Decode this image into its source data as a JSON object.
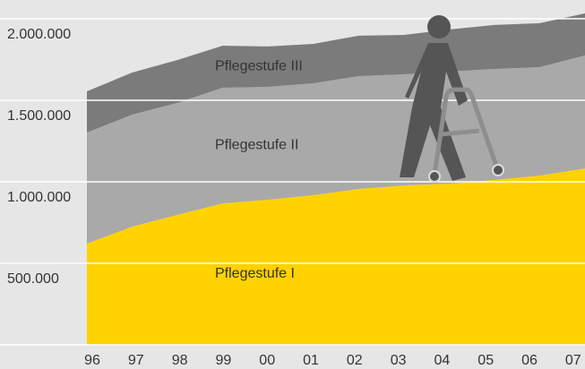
{
  "chart_data": {
    "type": "stacked-area",
    "categories": [
      "96",
      "97",
      "98",
      "99",
      "00",
      "01",
      "02",
      "03",
      "04",
      "05",
      "06",
      "07"
    ],
    "series": [
      {
        "name": "Pflegestufe I",
        "color": "#ffd200",
        "values": [
          621000,
          725000,
          797000,
          868000,
          890000,
          918000,
          956000,
          978000,
          989000,
          1011000,
          1038000,
          1082000
        ]
      },
      {
        "name": "Pflegestufe II",
        "color": "#a9a9a9",
        "values": [
          681000,
          687000,
          687000,
          709000,
          692000,
          686000,
          692000,
          681000,
          687000,
          681000,
          665000,
          693000
        ]
      },
      {
        "name": "Pflegestufe III",
        "color": "#7b7b7b",
        "values": [
          253000,
          258000,
          263000,
          258000,
          248000,
          242000,
          248000,
          242000,
          258000,
          270000,
          270000,
          258000
        ]
      }
    ],
    "ylim": [
      0,
      2115000
    ],
    "yticks": [
      {
        "value": 500000,
        "label": "500.000"
      },
      {
        "value": 1000000,
        "label": "1.000.000"
      },
      {
        "value": 1500000,
        "label": "1.500.000"
      },
      {
        "value": 2000000,
        "label": "2.000.000"
      }
    ],
    "grid": true
  }
}
